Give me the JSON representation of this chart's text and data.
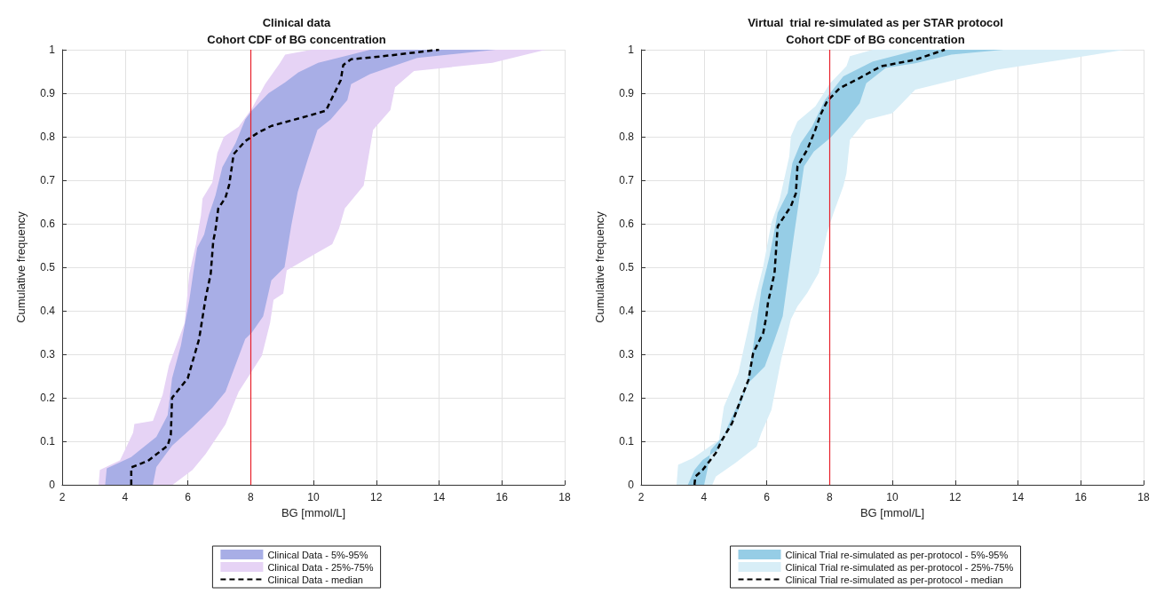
{
  "chart_data": [
    {
      "type": "line",
      "title": "Clinical data",
      "subtitle": "Cohort CDF of BG concentration",
      "xlabel": "BG [mmol/L]",
      "ylabel": "Cumulative frequency",
      "xlim": [
        2,
        18
      ],
      "xticks": [
        2,
        4,
        6,
        8,
        10,
        12,
        14,
        16,
        18
      ],
      "ylim": [
        0,
        1
      ],
      "yticks": [
        0,
        0.1,
        0.2,
        0.3,
        0.4,
        0.5,
        0.6,
        0.7,
        0.8,
        0.9,
        1
      ],
      "grid": true,
      "legend": "bottom",
      "line_style": "dashed",
      "marker": "none",
      "ref_lines": [
        {
          "axis": "x",
          "value": 8,
          "color": "#e8202a"
        }
      ],
      "series": [
        {
          "name": "Clinical Data - 5%-95%",
          "type": "area",
          "color": "#a8aee6",
          "x": [
            3.37,
            3.42,
            4.2,
            5.0,
            5.36,
            5.5,
            5.78,
            6.05,
            6.2,
            6.3,
            6.52,
            6.67,
            6.88,
            7.1,
            7.52,
            7.83,
            8.04,
            8.57,
            9.1,
            9.52,
            10.15,
            11.2,
            11.8,
            15.8,
            13.3,
            11.8,
            11.2,
            11.08,
            10.55,
            10.13,
            9.82,
            9.5,
            9.3,
            9.08,
            8.66,
            8.4,
            8.04,
            7.83,
            7.2,
            6.78,
            6.15,
            5.5,
            5.0,
            4.89
          ],
          "values": [
            0,
            0.038,
            0.064,
            0.11,
            0.16,
            0.245,
            0.32,
            0.425,
            0.5,
            0.545,
            0.575,
            0.62,
            0.665,
            0.73,
            0.785,
            0.84,
            0.86,
            0.9,
            0.925,
            0.948,
            0.97,
            0.989,
            1,
            1,
            0.981,
            0.944,
            0.921,
            0.884,
            0.84,
            0.816,
            0.748,
            0.673,
            0.598,
            0.5,
            0.47,
            0.387,
            0.35,
            0.335,
            0.214,
            0.177,
            0.132,
            0.09,
            0.041,
            0
          ]
        },
        {
          "name": "Clinical Data - 25%-75%",
          "type": "area",
          "color": "#e6d3f5",
          "x": [
            3.16,
            3.2,
            3.84,
            4.26,
            4.3,
            4.89,
            5.2,
            5.4,
            5.9,
            6.05,
            6.26,
            6.42,
            6.47,
            6.78,
            6.94,
            7.15,
            7.62,
            8.04,
            8.46,
            8.94,
            9.1,
            9.94,
            17.4,
            15.7,
            13.2,
            12.6,
            12.45,
            11.9,
            11.6,
            11.0,
            10.82,
            10.6,
            10.04,
            9.15,
            9.04,
            8.73,
            8.62,
            8.36,
            7.62,
            7.2,
            6.57,
            6.15,
            5.52
          ],
          "values": [
            0,
            0.034,
            0.056,
            0.12,
            0.14,
            0.147,
            0.207,
            0.274,
            0.372,
            0.485,
            0.553,
            0.62,
            0.658,
            0.695,
            0.763,
            0.8,
            0.823,
            0.865,
            0.921,
            0.97,
            0.989,
            1,
            1,
            0.97,
            0.951,
            0.914,
            0.861,
            0.816,
            0.688,
            0.635,
            0.59,
            0.553,
            0.53,
            0.493,
            0.44,
            0.425,
            0.372,
            0.297,
            0.214,
            0.139,
            0.071,
            0.034,
            0
          ]
        },
        {
          "name": "Clinical Data - median",
          "color": "#000000",
          "x": [
            4.2,
            4.2,
            4.73,
            5.36,
            5.46,
            5.5,
            6.0,
            6.36,
            6.57,
            6.73,
            6.81,
            6.88,
            6.97,
            7.2,
            7.32,
            7.46,
            7.83,
            8.25,
            8.67,
            9.93,
            10.4,
            10.6,
            10.87,
            10.95,
            11.2,
            12.2,
            14.0
          ],
          "values": [
            0,
            0.04,
            0.055,
            0.09,
            0.115,
            0.2,
            0.245,
            0.335,
            0.43,
            0.485,
            0.56,
            0.585,
            0.635,
            0.66,
            0.69,
            0.76,
            0.79,
            0.81,
            0.825,
            0.85,
            0.86,
            0.89,
            0.93,
            0.965,
            0.978,
            0.985,
            1
          ]
        }
      ]
    },
    {
      "type": "line",
      "title": "Virtual  trial re-simulated as per STAR protocol",
      "subtitle": "Cohort CDF of BG concentration",
      "xlabel": "BG [mmol/L]",
      "ylabel": "Cumulative frequency",
      "xlim": [
        2,
        18
      ],
      "xticks": [
        2,
        4,
        6,
        8,
        10,
        12,
        14,
        16,
        18
      ],
      "ylim": [
        0,
        1
      ],
      "yticks": [
        0,
        0.1,
        0.2,
        0.3,
        0.4,
        0.5,
        0.6,
        0.7,
        0.8,
        0.9,
        1
      ],
      "grid": true,
      "legend": "bottom",
      "line_style": "dashed",
      "marker": "none",
      "ref_lines": [
        {
          "axis": "x",
          "value": 8,
          "color": "#e8202a"
        }
      ],
      "series": [
        {
          "name": "Clinical Trial re-simulated as per-protocol - 5%-95%",
          "type": "area",
          "color": "#96cde6",
          "x": [
            3.49,
            3.7,
            3.96,
            4.43,
            4.9,
            5.36,
            5.57,
            5.83,
            6.09,
            6.35,
            6.67,
            6.82,
            7.08,
            7.45,
            7.86,
            8.44,
            9.38,
            10.83,
            13.54,
            11.88,
            10.73,
            9.79,
            9.17,
            8.96,
            8.54,
            8.02,
            7.5,
            7.19,
            6.88,
            6.67,
            6.51,
            6.25,
            5.94,
            5.42,
            5.1,
            4.79,
            4.22,
            4.11,
            4.01
          ],
          "values": [
            0,
            0.034,
            0.057,
            0.08,
            0.157,
            0.226,
            0.318,
            0.448,
            0.525,
            0.625,
            0.671,
            0.74,
            0.785,
            0.824,
            0.885,
            0.939,
            0.973,
            1,
            1,
            0.989,
            0.969,
            0.958,
            0.923,
            0.877,
            0.839,
            0.797,
            0.766,
            0.732,
            0.579,
            0.471,
            0.387,
            0.333,
            0.272,
            0.234,
            0.172,
            0.126,
            0.08,
            0.034,
            0
          ]
        },
        {
          "name": "Clinical Trial re-simulated as per-protocol - 25%-75%",
          "type": "area",
          "color": "#d8eef7",
          "x": [
            3.13,
            3.18,
            3.65,
            4.48,
            4.64,
            5.1,
            5.52,
            5.89,
            6.15,
            6.41,
            6.72,
            6.77,
            6.98,
            7.55,
            8.02,
            8.54,
            8.65,
            9.38,
            17.4,
            15.42,
            13.33,
            10.73,
            10.42,
            10.0,
            9.17,
            8.65,
            8.54,
            8.44,
            8.13,
            7.92,
            7.66,
            7.29,
            6.98,
            6.77,
            6.46,
            6.15,
            5.83,
            5.68,
            5.0,
            4.38,
            4.27
          ],
          "values": [
            0,
            0.046,
            0.061,
            0.103,
            0.18,
            0.257,
            0.395,
            0.502,
            0.602,
            0.655,
            0.755,
            0.801,
            0.835,
            0.87,
            0.923,
            0.962,
            0.985,
            1,
            1,
            0.977,
            0.954,
            0.908,
            0.885,
            0.854,
            0.839,
            0.793,
            0.716,
            0.686,
            0.625,
            0.579,
            0.487,
            0.441,
            0.41,
            0.38,
            0.287,
            0.172,
            0.119,
            0.088,
            0.05,
            0.019,
            0
          ]
        },
        {
          "name": "Clinical Trial re-simulated as per-protocol - median",
          "color": "#000000",
          "x": [
            3.7,
            3.73,
            3.96,
            4.38,
            4.58,
            4.9,
            5.21,
            5.42,
            5.57,
            5.89,
            5.99,
            6.04,
            6.25,
            6.35,
            6.77,
            6.93,
            6.98,
            7.29,
            7.55,
            7.71,
            7.92,
            8.33,
            8.96,
            9.64,
            10.73,
            11.67
          ],
          "values": [
            0,
            0.019,
            0.034,
            0.073,
            0.103,
            0.142,
            0.203,
            0.241,
            0.303,
            0.349,
            0.387,
            0.418,
            0.487,
            0.594,
            0.64,
            0.67,
            0.732,
            0.77,
            0.816,
            0.85,
            0.881,
            0.912,
            0.935,
            0.962,
            0.977,
            1
          ]
        }
      ]
    }
  ]
}
